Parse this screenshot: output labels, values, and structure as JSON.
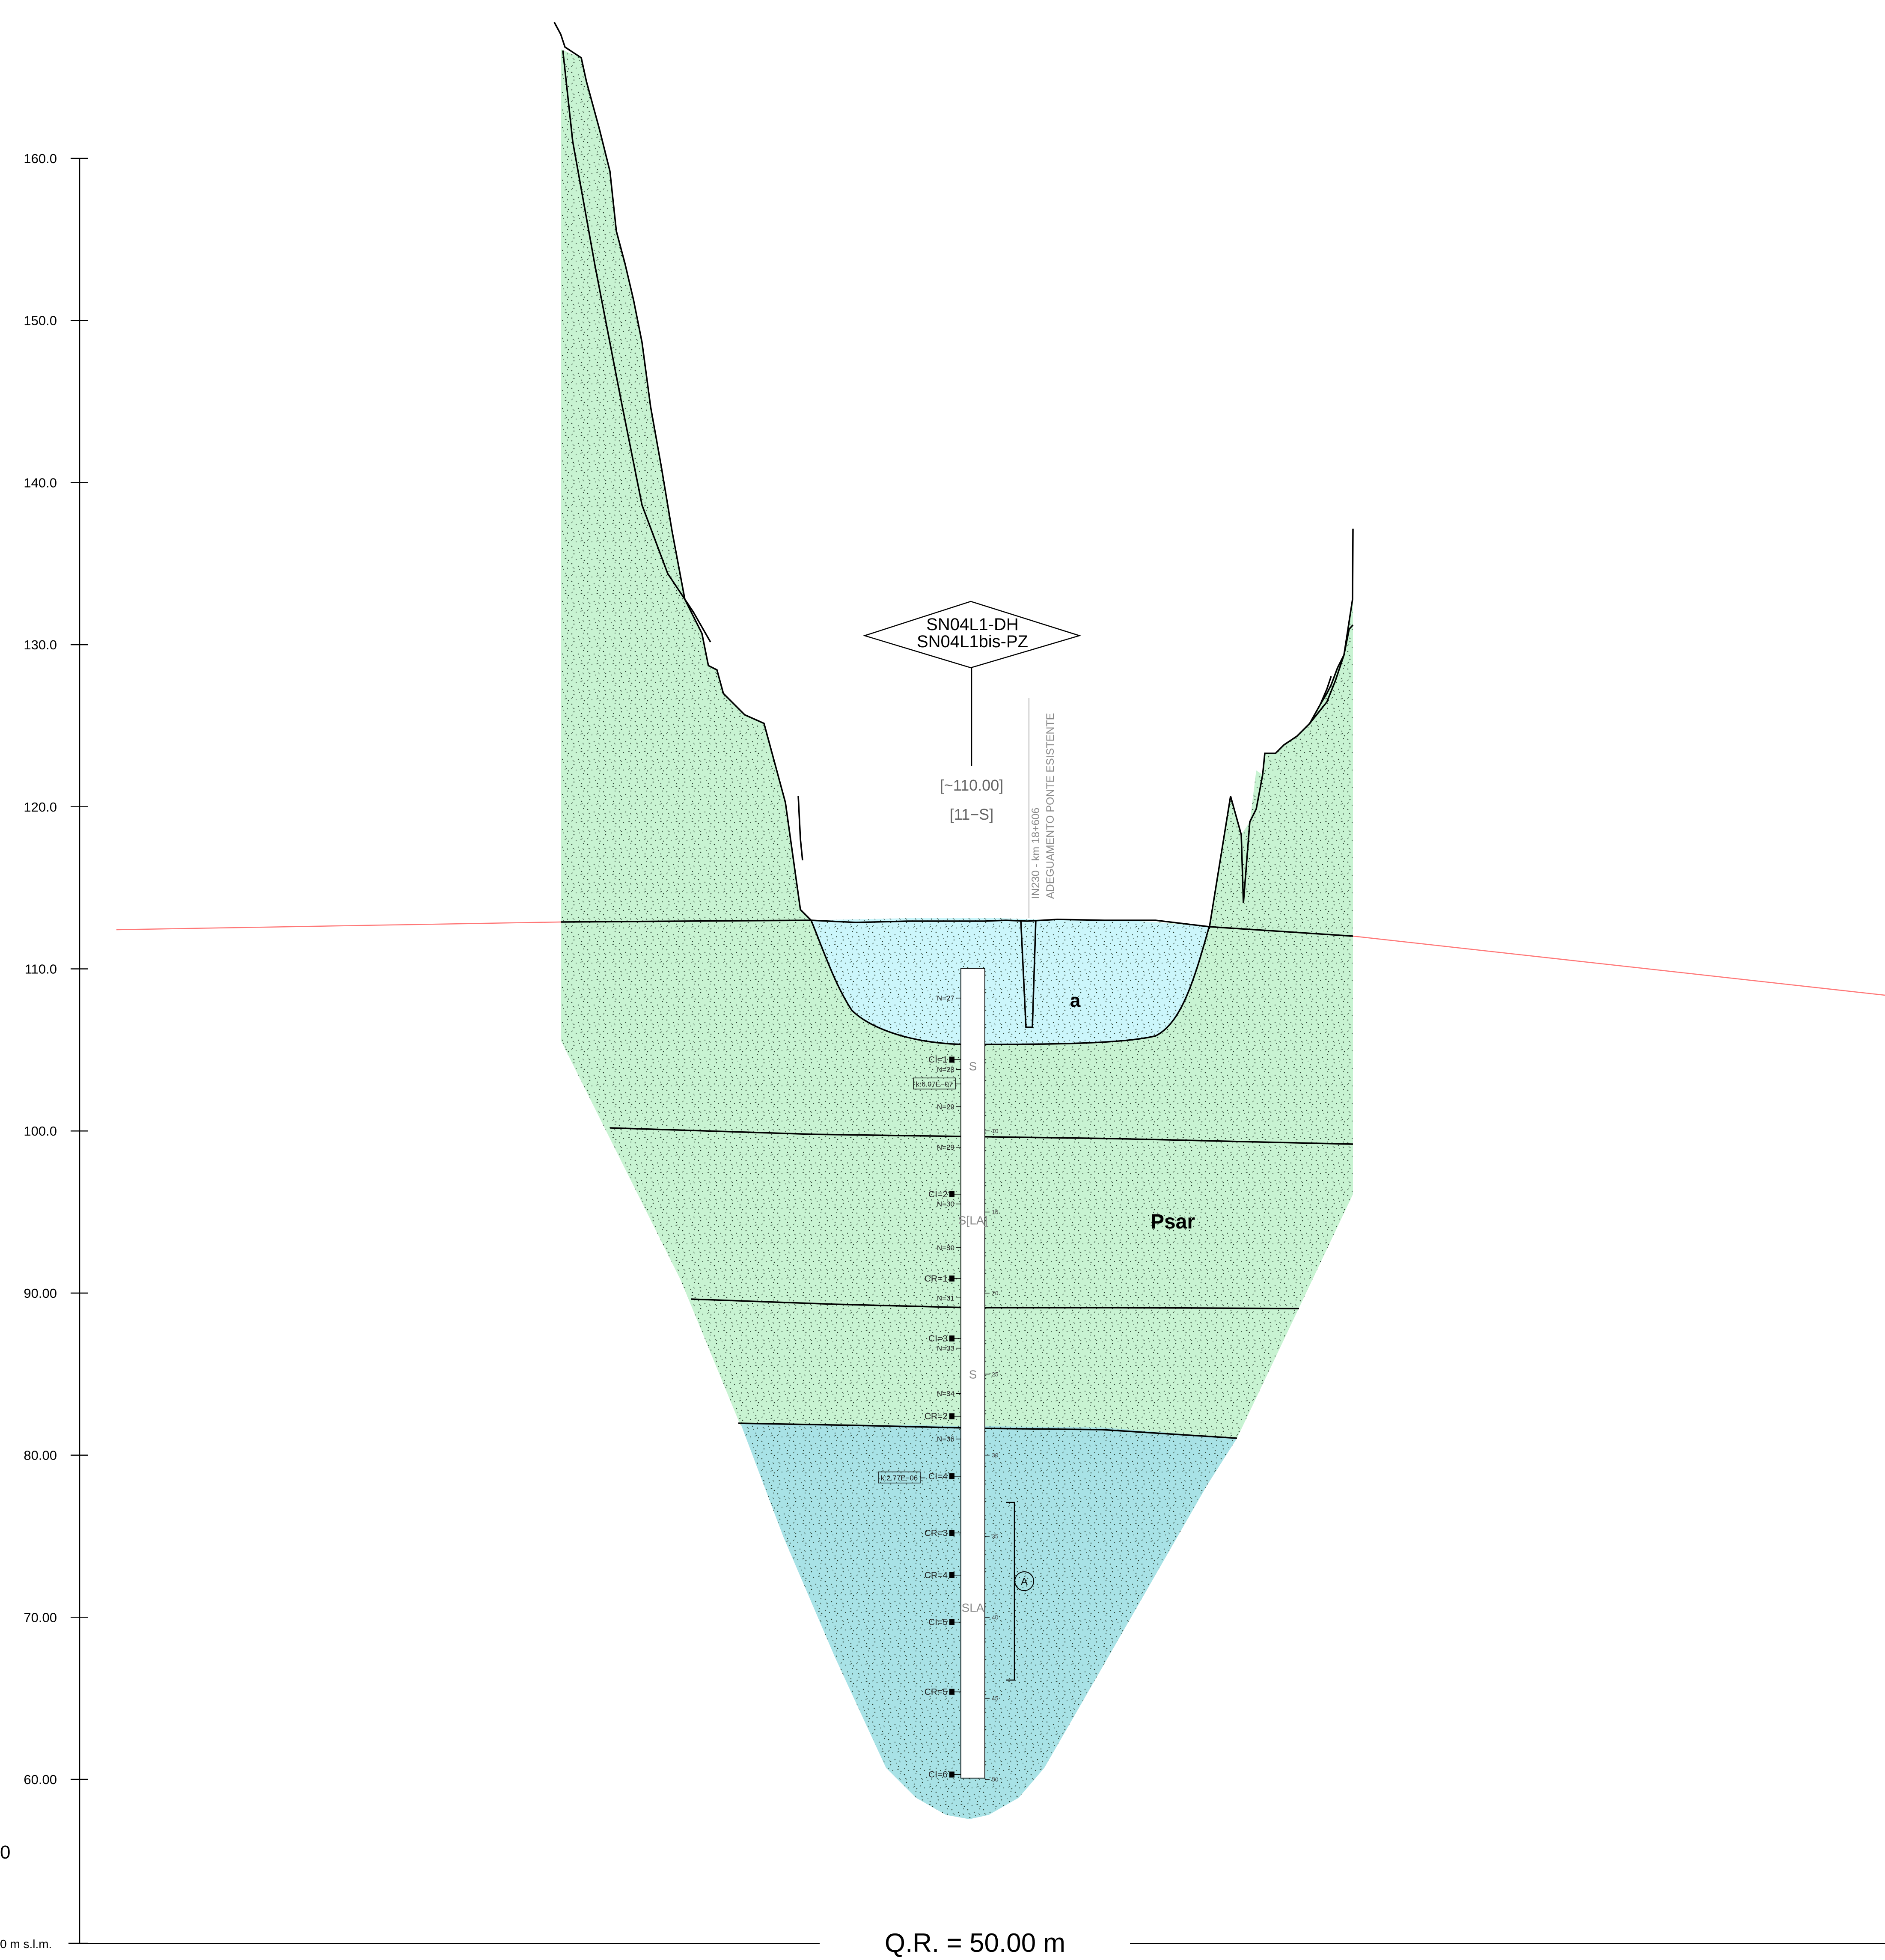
{
  "section": {
    "reference_level": "Q.R. = 50.00 m",
    "baseline_label": "0 m s.l.m.",
    "left_margin_fragment": "0",
    "elevation_ticks": [
      {
        "label": "160.0",
        "value": 160
      },
      {
        "label": "150.0",
        "value": 150
      },
      {
        "label": "140.0",
        "value": 140
      },
      {
        "label": "130.0",
        "value": 130
      },
      {
        "label": "120.0",
        "value": 120
      },
      {
        "label": "110.0",
        "value": 110
      },
      {
        "label": "100.0",
        "value": 100
      },
      {
        "label": "90.00",
        "value": 90
      },
      {
        "label": "80.00",
        "value": 80
      },
      {
        "label": "70.00",
        "value": 70
      },
      {
        "label": "60.00",
        "value": 60
      }
    ],
    "colors": {
      "psar_fill": "#c8f3d2",
      "a_fill": "#ccf6fb",
      "sla_fill": "#a8e2e6",
      "water_line": "#ff7777",
      "line": "#000000"
    }
  },
  "borehole": {
    "names": [
      "SN04L1-DH",
      "SN04L1bis-PZ"
    ],
    "elevation_text": "[~110.00]",
    "code_text": "[11−S]",
    "top_elevation": 110,
    "bottom_elevation": 60,
    "spt": [
      {
        "label": "N=27",
        "elev": 108.2
      },
      {
        "label": "N=28",
        "elev": 103.8
      },
      {
        "label": "N=29",
        "elev": 101.5
      },
      {
        "label": "N=29",
        "elev": 99.0
      },
      {
        "label": "N=30",
        "elev": 95.5
      },
      {
        "label": "N=30",
        "elev": 92.8
      },
      {
        "label": "N=31",
        "elev": 89.7
      },
      {
        "label": "N=33",
        "elev": 86.6
      },
      {
        "label": "N=34",
        "elev": 83.8
      },
      {
        "label": "N=36",
        "elev": 81.0
      }
    ],
    "samples": [
      {
        "label": "CI=1",
        "elev": 104.4
      },
      {
        "label": "CI=2",
        "elev": 96.1
      },
      {
        "label": "CR=1",
        "elev": 90.9
      },
      {
        "label": "CI=3",
        "elev": 87.2
      },
      {
        "label": "CR=2",
        "elev": 82.4
      },
      {
        "label": "CI=4",
        "elev": 78.7
      },
      {
        "label": "CR=3",
        "elev": 75.2
      },
      {
        "label": "CR=4",
        "elev": 72.6
      },
      {
        "label": "CI=5",
        "elev": 69.7
      },
      {
        "label": "CR=5",
        "elev": 65.4
      },
      {
        "label": "CI=6",
        "elev": 60.3
      }
    ],
    "permeability": [
      {
        "label": "k:6.07E−07",
        "elev": 102.9
      },
      {
        "label": "k:2.77E−06",
        "elev": 78.6
      }
    ],
    "lithology": [
      {
        "label": "S",
        "elev": 104.0
      },
      {
        "label": "S[LA]",
        "elev": 94.5
      },
      {
        "label": "S",
        "elev": 85.0
      },
      {
        "label": "SLA",
        "elev": 70.6
      }
    ],
    "depth_marks": [
      {
        "label": "10",
        "elev": 100
      },
      {
        "label": "15",
        "elev": 95
      },
      {
        "label": "20",
        "elev": 90
      },
      {
        "label": "25",
        "elev": 85
      },
      {
        "label": "30",
        "elev": 80
      },
      {
        "label": "35",
        "elev": 75
      },
      {
        "label": "40",
        "elev": 70
      },
      {
        "label": "45",
        "elev": 65
      },
      {
        "label": "50",
        "elev": 60
      }
    ],
    "bracket_label": "A"
  },
  "bridge_note": {
    "line1": "IN230 - km 18+606",
    "line2": "ADEGUAMENTO PONTE ESISTENTE"
  },
  "layers": {
    "a": "a",
    "psar": "Psar"
  }
}
